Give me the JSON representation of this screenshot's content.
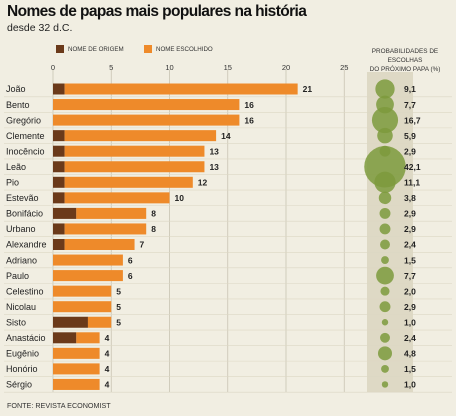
{
  "title": "Nomes de papas mais populares na história",
  "subtitle": "desde 32 d.C.",
  "source": "FONTE: REVISTA ECONOMIST",
  "prob_header": [
    "PROBABILIDADES DE ESCOLHAS",
    "DO PRÓXIMO PAPA (%)"
  ],
  "colors": {
    "origin": "#6b3a1a",
    "chosen": "#ee8a2a",
    "bubble": "#7d9a3c",
    "grid": "#c9c4b3",
    "band": "#ded9c5"
  },
  "chart_data": {
    "type": "bar",
    "orientation": "horizontal",
    "stacked": true,
    "xlim": [
      0,
      25
    ],
    "xticks": [
      "0",
      "5",
      "10",
      "15",
      "20",
      "25"
    ],
    "series": [
      {
        "name": "NOME DE ORIGEM",
        "values": [
          1,
          0,
          0,
          1,
          1,
          1,
          1,
          1,
          2,
          1,
          1,
          0,
          0,
          0,
          0,
          3,
          2,
          0,
          0,
          0
        ]
      },
      {
        "name": "NOME ESCOLHIDO",
        "values": [
          20,
          16,
          16,
          13,
          12,
          12,
          11,
          9,
          6,
          7,
          6,
          6,
          6,
          5,
          5,
          2,
          2,
          4,
          4,
          4
        ]
      }
    ],
    "categories": [
      "João",
      "Bento",
      "Gregório",
      "Clemente",
      "Inocêncio",
      "Leão",
      "Pio",
      "Estevão",
      "Bonifácio",
      "Urbano",
      "Alexandre",
      "Adriano",
      "Paulo",
      "Celestino",
      "Nicolau",
      "Sisto",
      "Anastácio",
      "Eugênio",
      "Honório",
      "Sérgio"
    ],
    "totals": [
      "21",
      "16",
      "16",
      "14",
      "13",
      "13",
      "12",
      "10",
      "8",
      "8",
      "7",
      "6",
      "6",
      "5",
      "5",
      "5",
      "4",
      "4",
      "4",
      "4"
    ],
    "probabilities": [
      9.1,
      7.7,
      16.7,
      5.9,
      2.9,
      42.1,
      11.1,
      3.8,
      2.9,
      2.9,
      2.4,
      1.5,
      7.7,
      2.0,
      2.9,
      1.0,
      2.4,
      4.8,
      1.5,
      1.0
    ],
    "probability_labels": [
      "9,1",
      "7,7",
      "16,7",
      "5,9",
      "2,9",
      "42,1",
      "11,1",
      "3,8",
      "2,9",
      "2,9",
      "2,4",
      "1,5",
      "7,7",
      "2,0",
      "2,9",
      "1,0",
      "2,4",
      "4,8",
      "1,5",
      "1,0"
    ]
  }
}
